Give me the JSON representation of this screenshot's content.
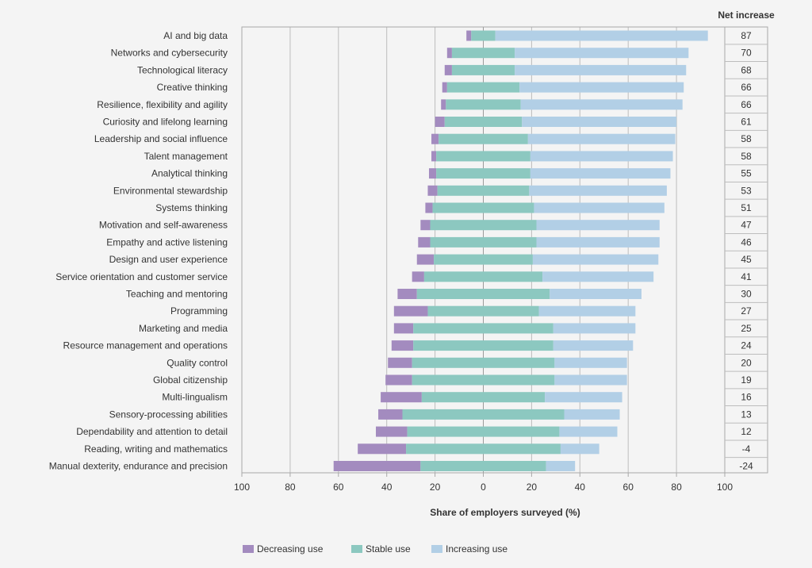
{
  "chart_data": {
    "type": "bar",
    "stacked": "diverging",
    "net_header": "Net increase",
    "xlabel": "Share of employers surveyed (%)",
    "xlim": [
      -100,
      100
    ],
    "x_ticks": [
      -100,
      -80,
      -60,
      -40,
      -20,
      0,
      20,
      40,
      60,
      80,
      100
    ],
    "x_tick_labels": [
      "100",
      "80",
      "60",
      "40",
      "20",
      "0",
      "20",
      "40",
      "60",
      "80",
      "100"
    ],
    "grid": true,
    "legend_position": "bottom",
    "categories": [
      "AI and big data",
      "Networks and cybersecurity",
      "Technological literacy",
      "Creative thinking",
      "Resilience, flexibility and agility",
      "Curiosity and lifelong learning",
      "Leadership and social influence",
      "Talent management",
      "Analytical thinking",
      "Environmental stewardship",
      "Systems thinking",
      "Motivation and self-awareness",
      "Empathy and active listening",
      "Design and user experience",
      "Service orientation and customer service",
      "Teaching and mentoring",
      "Programming",
      "Marketing and media",
      "Resource management and operations",
      "Quality control",
      "Global citizenship",
      "Multi-lingualism",
      "Sensory-processing abilities",
      "Dependability and attention to detail",
      "Reading, writing and mathematics",
      "Manual dexterity, endurance and precision"
    ],
    "series": [
      {
        "name": "Decreasing use",
        "color": "#a38bbf",
        "values": [
          2,
          2,
          3,
          2,
          2,
          4,
          3,
          2,
          3,
          4,
          3,
          4,
          5,
          7,
          5,
          8,
          14,
          8,
          9,
          10,
          11,
          17,
          10,
          13,
          20,
          36
        ]
      },
      {
        "name": "Stable use",
        "color": "#8cc8c0",
        "values": [
          10,
          26,
          26,
          30,
          31,
          32,
          37,
          39,
          39,
          38,
          42,
          44,
          44,
          41,
          49,
          55,
          46,
          58,
          58,
          59,
          59,
          51,
          67,
          63,
          64,
          52
        ]
      },
      {
        "name": "Increasing use",
        "color": "#b2cfe6",
        "values": [
          88,
          72,
          71,
          68,
          67,
          64,
          61,
          59,
          58,
          57,
          54,
          51,
          51,
          52,
          46,
          38,
          40,
          34,
          33,
          30,
          30,
          32,
          23,
          24,
          16,
          12
        ]
      }
    ],
    "net_increase": [
      "87",
      "70",
      "68",
      "66",
      "66",
      "61",
      "58",
      "58",
      "55",
      "53",
      "51",
      "47",
      "46",
      "45",
      "41",
      "30",
      "27",
      "25",
      "24",
      "20",
      "19",
      "16",
      "13",
      "12",
      "-4",
      "-24"
    ]
  }
}
